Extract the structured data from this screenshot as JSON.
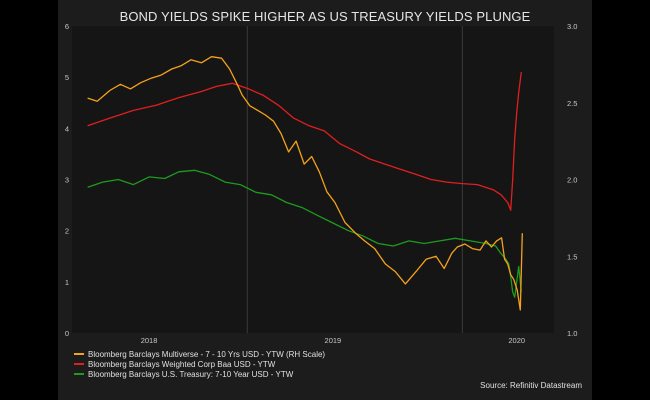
{
  "chart_data": {
    "type": "line",
    "title": "BOND YIELDS SPIKE HIGHER AS US TREASURY YIELDS PLUNGE",
    "source": "Source: Refinitiv Datastream",
    "x_ticks": [
      "2018",
      "2019",
      "2020"
    ],
    "left_axis": {
      "min": 0,
      "max": 6,
      "ticks": [
        "0",
        "1",
        "2",
        "3",
        "4",
        "5",
        "6"
      ]
    },
    "right_axis": {
      "min": 1.0,
      "max": 3.0,
      "ticks": [
        "1.0",
        "1.5",
        "2.0",
        "2.5",
        "3.0"
      ]
    },
    "grid": {
      "vertical_lines": true,
      "horizontal_lines": false
    },
    "legend_position": "bottom-left",
    "series": [
      {
        "name": "Bloomberg Barclays Multiverse - 7 - 10 Yrs USD - YTW (RH Scale)",
        "axis": "right",
        "color": "#f5a21b",
        "x": [
          "2017-09-01",
          "2017-09-20",
          "2017-10-15",
          "2017-11-05",
          "2017-11-25",
          "2017-12-15",
          "2018-01-05",
          "2018-01-25",
          "2018-02-15",
          "2018-03-05",
          "2018-03-25",
          "2018-04-15",
          "2018-05-05",
          "2018-05-25",
          "2018-06-10",
          "2018-06-25",
          "2018-07-05",
          "2018-07-20",
          "2018-08-05",
          "2018-08-20",
          "2018-09-05",
          "2018-09-20",
          "2018-10-05",
          "2018-10-20",
          "2018-11-05",
          "2018-11-20",
          "2018-12-05",
          "2018-12-20",
          "2019-01-05",
          "2019-01-25",
          "2019-02-15",
          "2019-03-05",
          "2019-03-25",
          "2019-04-15",
          "2019-05-05",
          "2019-05-25",
          "2019-06-15",
          "2019-07-05",
          "2019-07-25",
          "2019-08-10",
          "2019-08-25",
          "2019-09-05",
          "2019-09-20",
          "2019-10-05",
          "2019-10-20",
          "2019-11-01",
          "2019-11-12",
          "2019-11-22",
          "2019-12-02",
          "2019-12-08",
          "2019-12-14",
          "2019-12-20",
          "2019-12-26",
          "2020-01-02",
          "2020-01-08",
          "2020-01-12"
        ],
        "y": [
          2.53,
          2.51,
          2.58,
          2.62,
          2.59,
          2.63,
          2.66,
          2.68,
          2.72,
          2.74,
          2.78,
          2.76,
          2.8,
          2.79,
          2.72,
          2.62,
          2.55,
          2.48,
          2.45,
          2.42,
          2.38,
          2.3,
          2.18,
          2.25,
          2.1,
          2.15,
          2.05,
          1.92,
          1.85,
          1.72,
          1.65,
          1.6,
          1.55,
          1.45,
          1.4,
          1.32,
          1.4,
          1.48,
          1.5,
          1.42,
          1.52,
          1.56,
          1.58,
          1.55,
          1.54,
          1.6,
          1.56,
          1.6,
          1.62,
          1.48,
          1.45,
          1.38,
          1.35,
          1.28,
          1.15,
          1.65
        ]
      },
      {
        "name": "Bloomberg Barclays Weighted Corp Baa USD - YTW",
        "axis": "left",
        "color": "#e01f1f",
        "x": [
          "2017-09-01",
          "2017-10-15",
          "2017-12-01",
          "2018-01-15",
          "2018-03-01",
          "2018-04-15",
          "2018-05-15",
          "2018-06-15",
          "2018-07-15",
          "2018-08-15",
          "2018-09-15",
          "2018-10-15",
          "2018-11-15",
          "2018-12-15",
          "2019-01-15",
          "2019-02-15",
          "2019-03-15",
          "2019-04-15",
          "2019-05-15",
          "2019-06-15",
          "2019-07-15",
          "2019-08-15",
          "2019-09-15",
          "2019-10-15",
          "2019-11-15",
          "2019-12-01",
          "2019-12-14",
          "2019-12-20",
          "2019-12-24",
          "2019-12-28",
          "2020-01-01",
          "2020-01-05",
          "2020-01-10"
        ],
        "y": [
          4.05,
          4.2,
          4.35,
          4.45,
          4.6,
          4.72,
          4.82,
          4.88,
          4.78,
          4.65,
          4.45,
          4.2,
          4.05,
          3.95,
          3.7,
          3.55,
          3.4,
          3.3,
          3.2,
          3.1,
          3.0,
          2.95,
          2.92,
          2.9,
          2.8,
          2.7,
          2.55,
          2.4,
          3.0,
          3.8,
          4.3,
          4.7,
          5.1
        ]
      },
      {
        "name": "Bloomberg Barclays U.S. Treasury: 7-10 Year USD - YTW",
        "axis": "left",
        "color": "#1e9a1e",
        "x": [
          "2017-09-01",
          "2017-10-01",
          "2017-11-01",
          "2017-12-01",
          "2018-01-01",
          "2018-02-01",
          "2018-03-01",
          "2018-04-01",
          "2018-05-01",
          "2018-06-01",
          "2018-07-01",
          "2018-08-01",
          "2018-09-01",
          "2018-10-01",
          "2018-11-01",
          "2018-12-01",
          "2019-01-01",
          "2019-02-01",
          "2019-03-01",
          "2019-04-01",
          "2019-05-01",
          "2019-06-01",
          "2019-07-01",
          "2019-08-01",
          "2019-09-01",
          "2019-10-01",
          "2019-11-01",
          "2019-11-20",
          "2019-12-01",
          "2019-12-10",
          "2019-12-16",
          "2019-12-20",
          "2019-12-24",
          "2019-12-28",
          "2020-01-01",
          "2020-01-05",
          "2020-01-10"
        ],
        "y": [
          2.85,
          2.95,
          3.0,
          2.9,
          3.05,
          3.02,
          3.15,
          3.18,
          3.1,
          2.95,
          2.9,
          2.75,
          2.7,
          2.55,
          2.45,
          2.3,
          2.15,
          2.0,
          1.9,
          1.75,
          1.7,
          1.8,
          1.75,
          1.8,
          1.85,
          1.8,
          1.75,
          1.7,
          1.55,
          1.45,
          1.35,
          1.1,
          0.8,
          0.7,
          1.0,
          1.3,
          0.8
        ]
      }
    ]
  }
}
